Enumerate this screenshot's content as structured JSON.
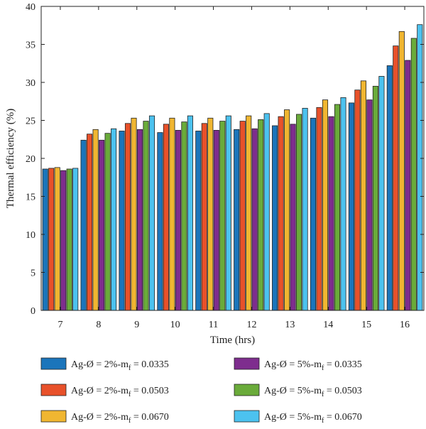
{
  "chart_data": {
    "type": "bar",
    "title": "",
    "xlabel": "Time (hrs)",
    "ylabel": "Thermal efficiency (%)",
    "ylim": [
      0,
      40
    ],
    "yticks": [
      0,
      5,
      10,
      15,
      20,
      25,
      30,
      35,
      40
    ],
    "categories": [
      "7",
      "8",
      "9",
      "10",
      "11",
      "12",
      "13",
      "14",
      "15",
      "16"
    ],
    "grid": false,
    "legend_position": "bottom",
    "series": [
      {
        "name": "Ag-Ø = 2%-m",
        "subscript": "f",
        "suffix": " = 0.0335",
        "color": "#1b75bb",
        "values": [
          18.6,
          22.4,
          23.6,
          23.4,
          23.6,
          23.8,
          24.3,
          25.3,
          27.3,
          32.2
        ]
      },
      {
        "name": "Ag-Ø = 2%-m",
        "subscript": "f",
        "suffix": " = 0.0503",
        "color": "#e8512a",
        "values": [
          18.7,
          23.2,
          24.6,
          24.5,
          24.6,
          24.9,
          25.5,
          26.7,
          29.0,
          34.8
        ]
      },
      {
        "name": "Ag-Ø = 2%-m",
        "subscript": "f",
        "suffix": " = 0.0670",
        "color": "#f0b631",
        "values": [
          18.8,
          23.8,
          25.3,
          25.3,
          25.3,
          25.6,
          26.4,
          27.7,
          30.2,
          36.7
        ]
      },
      {
        "name": "Ag-Ø = 5%-m",
        "subscript": "f",
        "suffix": " = 0.0335",
        "color": "#7e2d8e",
        "values": [
          18.4,
          22.4,
          23.8,
          23.7,
          23.7,
          23.9,
          24.5,
          25.5,
          27.7,
          32.9
        ]
      },
      {
        "name": "Ag-Ø = 5%-m",
        "subscript": "f",
        "suffix": " = 0.0503",
        "color": "#6aab3a",
        "values": [
          18.6,
          23.3,
          24.9,
          24.8,
          24.9,
          25.1,
          25.8,
          27.1,
          29.5,
          35.8
        ]
      },
      {
        "name": "Ag-Ø = 5%-m",
        "subscript": "f",
        "suffix": " = 0.0670",
        "color": "#4cc2ef",
        "values": [
          18.7,
          23.9,
          25.6,
          25.6,
          25.6,
          25.9,
          26.6,
          28.0,
          30.8,
          37.6
        ]
      }
    ]
  }
}
